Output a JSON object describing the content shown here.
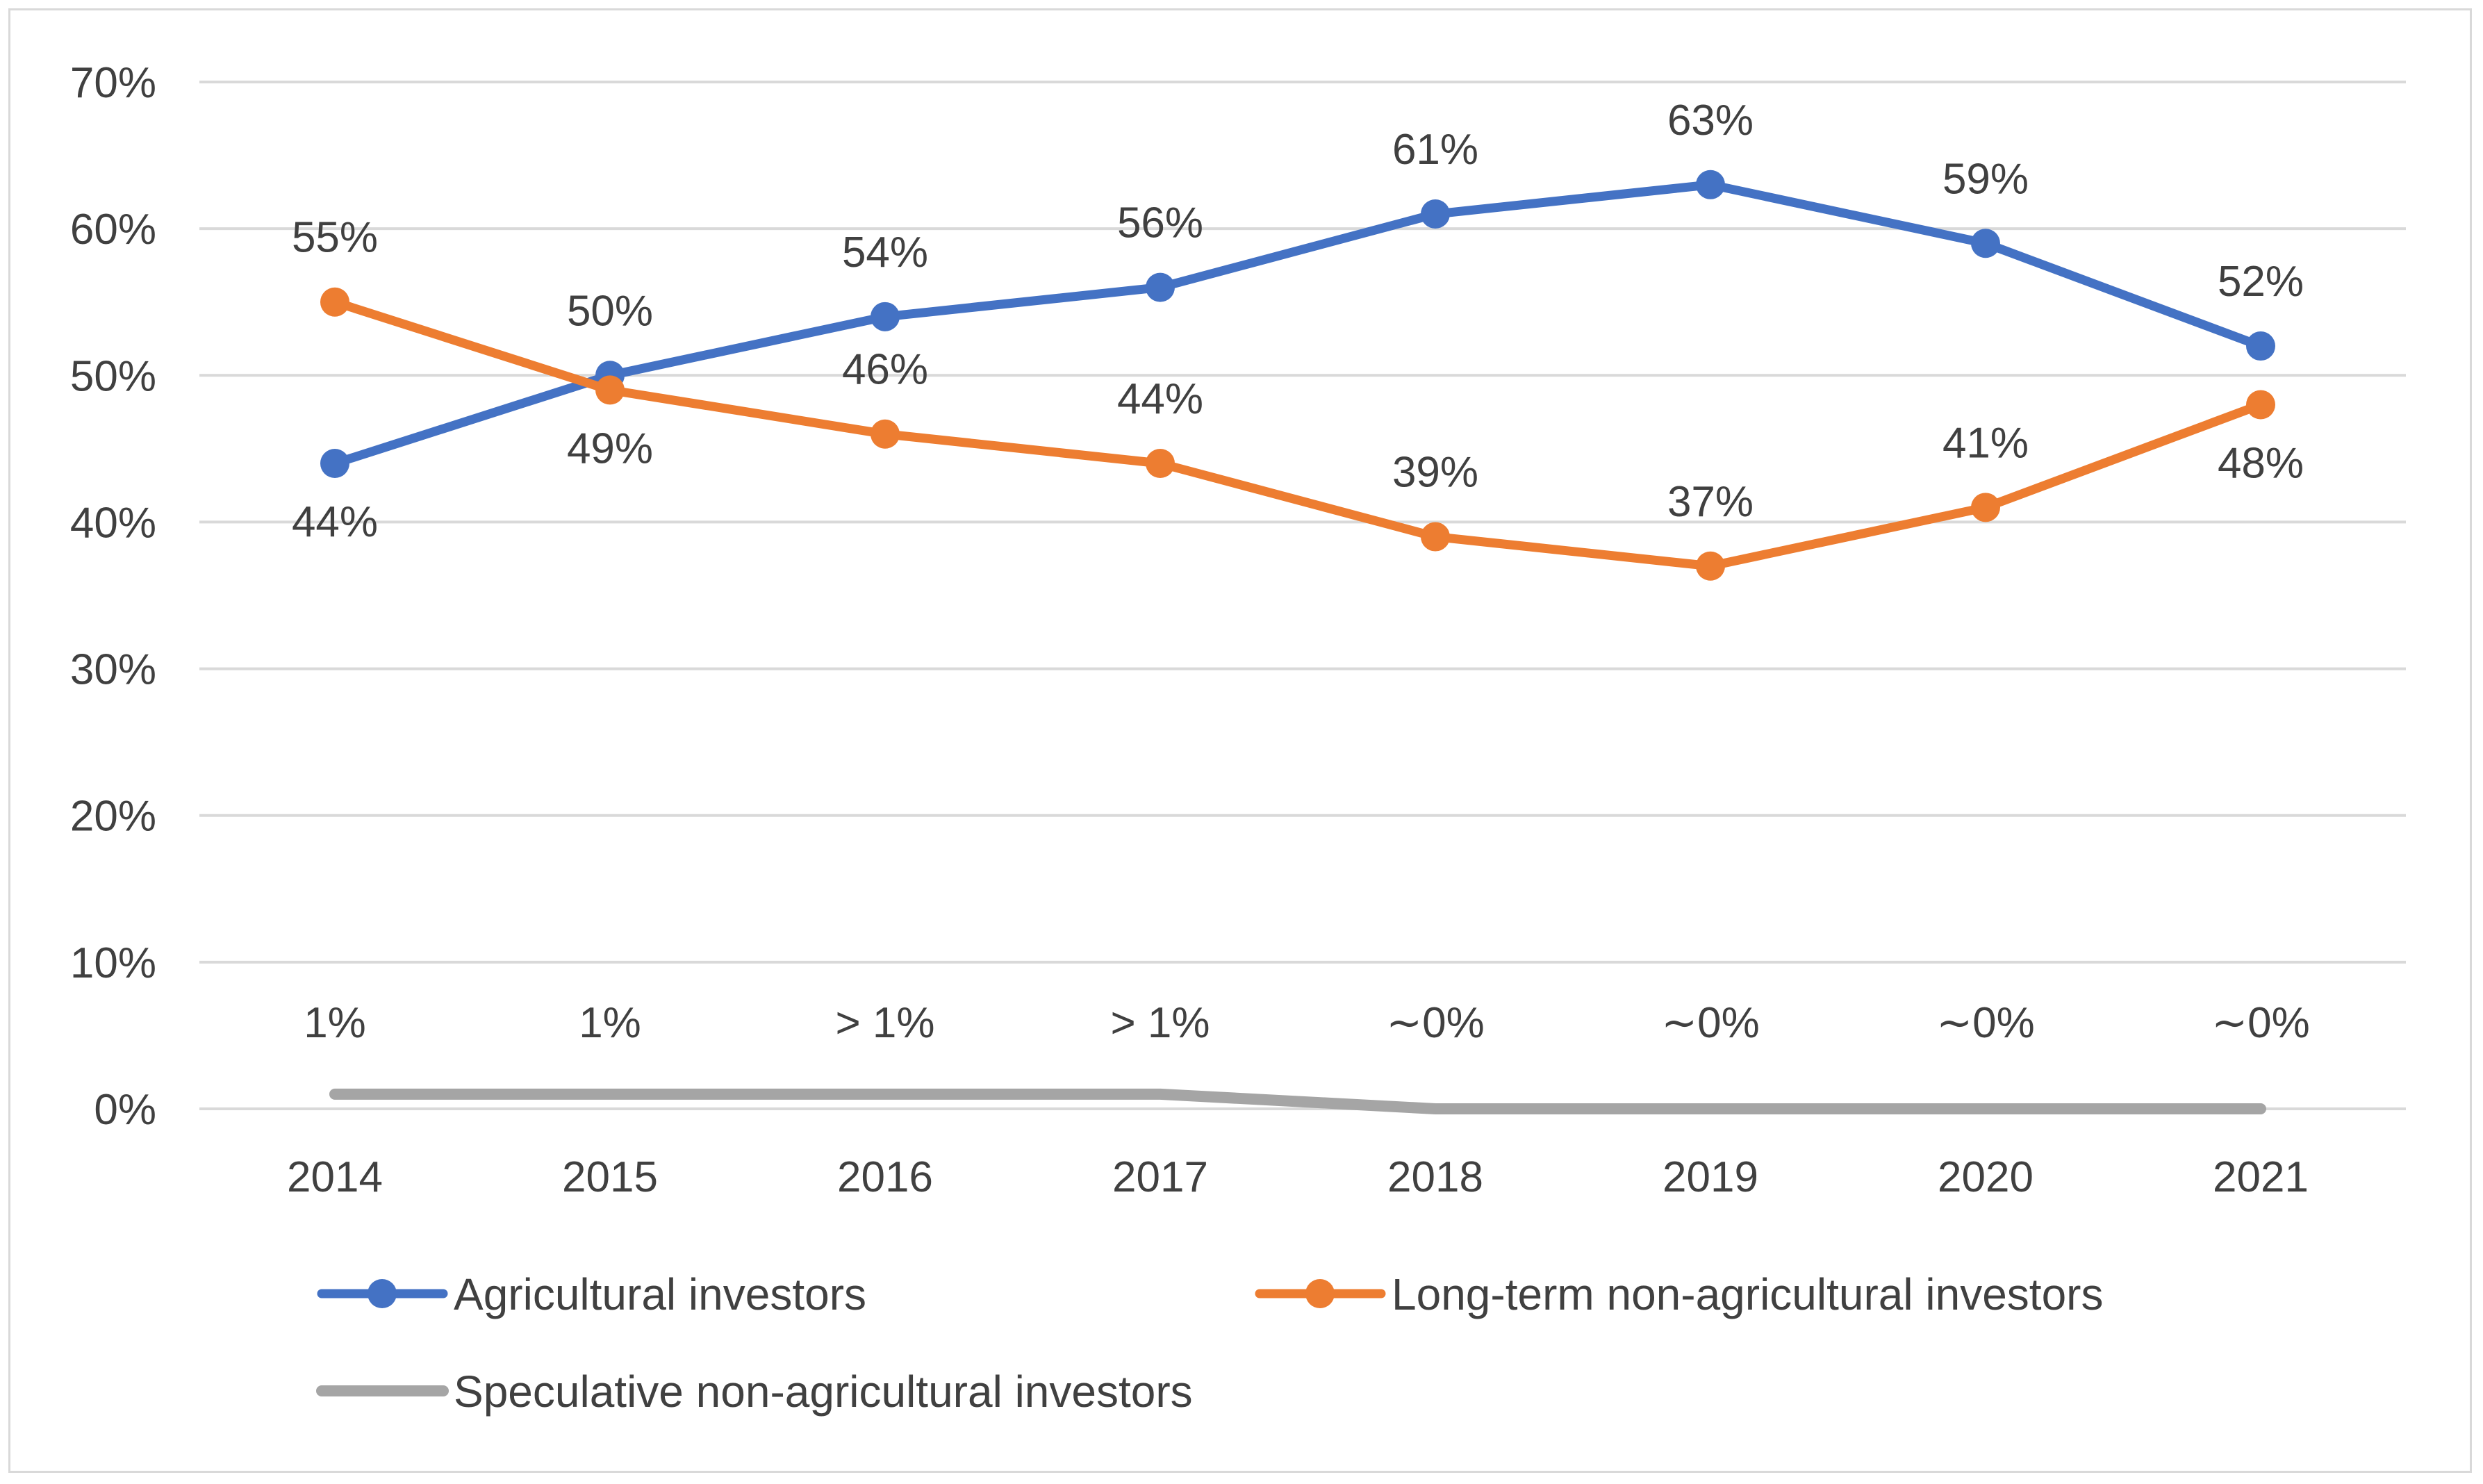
{
  "chart_data": {
    "type": "line",
    "title": "",
    "xlabel": "",
    "ylabel": "",
    "categories": [
      "2014",
      "2015",
      "2016",
      "2017",
      "2018",
      "2019",
      "2020",
      "2021"
    ],
    "ylim": [
      0,
      70
    ],
    "yticks": [
      0,
      10,
      20,
      30,
      40,
      50,
      60,
      70
    ],
    "ytick_labels": [
      "0%",
      "10%",
      "20%",
      "30%",
      "40%",
      "50%",
      "60%",
      "70%"
    ],
    "grid": true,
    "legend_position": "bottom",
    "series": [
      {
        "name": "Agricultural investors",
        "color": "#4472c4",
        "markers": true,
        "values": [
          44,
          50,
          54,
          56,
          61,
          63,
          59,
          52
        ],
        "labels": [
          "44%",
          "50%",
          "54%",
          "56%",
          "61%",
          "63%",
          "59%",
          "52%"
        ],
        "label_side": [
          "below",
          "above",
          "above",
          "above",
          "above",
          "above",
          "above",
          "above"
        ]
      },
      {
        "name": "Long-term non-agricultural investors",
        "color": "#ed7d31",
        "markers": true,
        "values": [
          55,
          49,
          46,
          44,
          39,
          37,
          41,
          48
        ],
        "labels": [
          "55%",
          "49%",
          "46%",
          "44%",
          "39%",
          "37%",
          "41%",
          "48%"
        ],
        "label_side": [
          "above",
          "below",
          "above",
          "above",
          "above",
          "above",
          "above",
          "below"
        ]
      },
      {
        "name": "Speculative non-agricultural investors",
        "color": "#a5a5a5",
        "markers": false,
        "values": [
          1,
          1,
          1,
          1,
          0,
          0,
          0,
          0
        ],
        "labels": [
          "1%",
          "1%",
          "> 1%",
          "> 1%",
          "∼0%",
          "∼0%",
          "∼0%",
          "∼0%"
        ],
        "label_side": [
          "above",
          "above",
          "above",
          "above",
          "above",
          "above",
          "above",
          "above"
        ]
      }
    ]
  }
}
